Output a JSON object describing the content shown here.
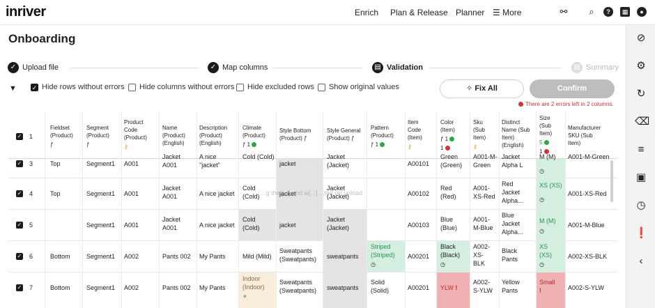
{
  "app": {
    "logo": "inriver"
  },
  "topnav": {
    "items": [
      "Enrich",
      "Plan & Release",
      "Planner"
    ],
    "more": "More"
  },
  "page": {
    "title": "Onboarding"
  },
  "stepper": {
    "steps": [
      {
        "label": "Upload file",
        "state": "done"
      },
      {
        "label": "Map columns",
        "state": "done"
      },
      {
        "label": "Validation",
        "state": "current"
      },
      {
        "label": "Summary",
        "state": "pending"
      }
    ]
  },
  "filters": {
    "hide_rows_without_errors": {
      "label": "Hide rows without errors",
      "checked": true
    },
    "hide_columns_without_errors": {
      "label": "Hide columns without errors",
      "checked": false
    },
    "hide_excluded_rows": {
      "label": "Hide excluded rows",
      "checked": false
    },
    "show_original_values": {
      "label": "Show original values",
      "checked": false
    }
  },
  "actions": {
    "fix_all": "Fix All",
    "confirm": "Confirm",
    "error_note": "There are 2 errors left in 2 columns."
  },
  "table": {
    "columns": [
      {
        "key": "fieldset",
        "line1": "Fieldset",
        "line2": "(Product)",
        "badge": "ƒ"
      },
      {
        "key": "segment",
        "line1": "Segment",
        "line2": "(Product)",
        "badge": "ƒ"
      },
      {
        "key": "product_code",
        "line1": "Product",
        "line2": "Code",
        "line3": "(Product)",
        "badge": "key"
      },
      {
        "key": "name",
        "line1": "Name",
        "line2": "(Product)",
        "line3": "(English)"
      },
      {
        "key": "description",
        "line1": "Description",
        "line2": "(Product)",
        "line3": "(English)"
      },
      {
        "key": "climate",
        "line1": "Climate",
        "line2": "(Product)",
        "badge": "ƒ 1",
        "ok_count": "1"
      },
      {
        "key": "style_bottom",
        "line1": "Style Bottom",
        "line2": "(Product) ƒ"
      },
      {
        "key": "style_general",
        "line1": "Style General",
        "line2": "(Product) ƒ"
      },
      {
        "key": "pattern",
        "line1": "Pattern",
        "line2": "(Product)",
        "badge": "ƒ 1",
        "ok_count": "1"
      },
      {
        "key": "item_code",
        "line1": "Item",
        "line2": "Code",
        "line3": "(Item)",
        "badge": "key"
      },
      {
        "key": "color",
        "line1": "Color",
        "line2": "(Item)",
        "badge": "ƒ 1",
        "err_count": "1"
      },
      {
        "key": "sku",
        "line1": "Sku",
        "line2": "(Sub",
        "line3": "Item)",
        "badge": "key"
      },
      {
        "key": "distinct_name",
        "line1": "Distinct",
        "line2": "Name (Sub",
        "line3": "Item)",
        "line4": "(English)"
      },
      {
        "key": "size",
        "line1": "Size",
        "line2": "(Sub",
        "line3": "Item)",
        "ok_count": "5",
        "err_count": "1"
      },
      {
        "key": "manufacturer_sku",
        "line1": "Manufacturer",
        "line2": "SKU (Sub",
        "line3": "Item)"
      }
    ],
    "header_row_number": "1",
    "rows": [
      {
        "num": "3",
        "fieldset": "Top",
        "segment": "Segment1",
        "product_code": "A001",
        "name": "Jacket A001",
        "description": "A nice \"jacket\"",
        "climate": "Cold (Cold)",
        "style_bottom": "jacket",
        "style_general": "Jacket (Jacket)",
        "pattern": "",
        "item_code": "A00101",
        "color": "Green (Green)",
        "sku": "A001-M-Green",
        "distinct_name": "Jacket Alpha L",
        "size": "M (M)",
        "manufacturer_sku": "A001-M-Green"
      },
      {
        "num": "4",
        "fieldset": "Top",
        "segment": "Segment1",
        "product_code": "A001",
        "name_1": "Jacket",
        "name_2": "A001",
        "description": "A nice jacket",
        "climate_1": "Cold",
        "climate_2": "(Cold)",
        "style_bottom": "jacket",
        "style_general_1": "Jacket",
        "style_general_2": "(Jacket)",
        "pattern": "",
        "item_code": "A00102",
        "color_1": "Red",
        "color_2": "(Red)",
        "sku_1": "A001-",
        "sku_2": "XS-Red",
        "distinct_1": "Red",
        "distinct_2": "Jacket",
        "distinct_3": "Alpha...",
        "size": "XS (XS)",
        "manufacturer_sku": "A001-XS-Red"
      },
      {
        "num": "5",
        "fieldset": "",
        "segment": "Segment1",
        "product_code": "A001",
        "name_1": "Jacket",
        "name_2": "A001",
        "description": "A nice jacket",
        "climate_1": "Cold",
        "climate_2": "(Cold)",
        "style_bottom": "jacket",
        "style_general_1": "Jacket",
        "style_general_2": "(Jacket)",
        "pattern": "",
        "item_code": "A00103",
        "color_1": "Blue",
        "color_2": "(Blue)",
        "sku_1": "A001-",
        "sku_2": "M-Blue",
        "distinct_1": "Blue",
        "distinct_2": "Jacket",
        "distinct_3": "Alpha...",
        "size": "M (M)",
        "manufacturer_sku": "A001-M-Blue"
      },
      {
        "num": "6",
        "fieldset": "Bottom",
        "segment": "Segment1",
        "product_code": "A002",
        "name": "Pants 002",
        "description": "My Pants",
        "climate": "Mild (Mild)",
        "style_bottom_1": "Sweatpants",
        "style_bottom_2": "(Sweatpants)",
        "style_general": "sweatpants",
        "pattern_1": "Striped",
        "pattern_2": "(Striped)",
        "item_code": "A00201",
        "color_1": "Black",
        "color_2": "(Black)",
        "sku_1": "A002-",
        "sku_2": "XS-",
        "sku_3": "BLK",
        "distinct_1": "Black",
        "distinct_2": "Pants",
        "size_1": "XS",
        "size_2": "(XS)",
        "manufacturer_sku": "A002-XS-BLK"
      },
      {
        "num": "7",
        "fieldset": "Bottom",
        "segment": "Segment1",
        "product_code": "A002",
        "name": "Pants 002",
        "description": "My Pants",
        "climate_1": "Indoor",
        "climate_2": "(Indoor)",
        "style_bottom_1": "Sweatpants",
        "style_bottom_2": "(Sweatpants)",
        "style_general": "sweatpants",
        "pattern_1": "Solid",
        "pattern_2": "(Solid)",
        "item_code": "A00201",
        "color": "YLW",
        "sku_1": "A002-",
        "sku_2": "S-YLW",
        "distinct_1": "Yellow",
        "distinct_2": "Pants",
        "size": "Small",
        "manufacturer_sku": "A002-S-YLW"
      }
    ]
  },
  "overlay_text": {
    "row4": "...g the [...] and w[...] ...ted on upload"
  },
  "colors": {
    "error": "#d23535",
    "ok": "#2aa84a",
    "cell_grey": "#e4e4e4",
    "cell_green": "#d4efdf",
    "cell_red": "#f0b2b2"
  }
}
